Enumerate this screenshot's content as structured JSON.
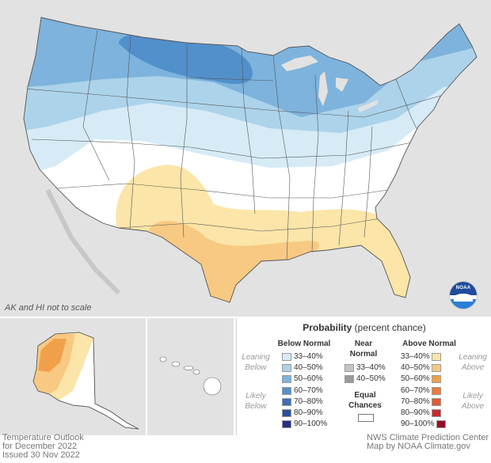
{
  "map": {
    "note": "AK and HI not to scale",
    "logo_text": "NOAA",
    "colors": {
      "below_33_40": "#d6ebf6",
      "below_40_50": "#acd3ea",
      "below_50_60": "#7db3dc",
      "below_60_70": "#5290cb",
      "above_33_40": "#fbe5a8",
      "above_40_50": "#f8c982",
      "above_50_60": "#f1a04a",
      "land": "#ffffff",
      "background": "#e2e2e2"
    }
  },
  "legend": {
    "title_bold": "Probability",
    "title_rest": "(percent chance)",
    "below_header": "Below Normal",
    "near_header_1": "Near",
    "near_header_2": "Normal",
    "above_header": "Above Normal",
    "leaning_below_1": "Leaning",
    "leaning_below_2": "Below",
    "likely_below_1": "Likely",
    "likely_below_2": "Below",
    "leaning_above_1": "Leaning",
    "leaning_above_2": "Above",
    "likely_above_1": "Likely",
    "likely_above_2": "Above",
    "equal_1": "Equal",
    "equal_2": "Chances",
    "below_rows": [
      {
        "label": "33–40%",
        "color": "#d6ebf6"
      },
      {
        "label": "40–50%",
        "color": "#acd3ea"
      },
      {
        "label": "50–60%",
        "color": "#7db3dc"
      },
      {
        "label": "60–70%",
        "color": "#5290cb"
      },
      {
        "label": "70–80%",
        "color": "#3c6db5"
      },
      {
        "label": "80–90%",
        "color": "#2b4ea0"
      },
      {
        "label": "90–100%",
        "color": "#252f8a"
      }
    ],
    "near_rows": [
      {
        "label": "33–40%",
        "color": "#c4c4c4"
      },
      {
        "label": "40–50%",
        "color": "#9a9a9a"
      }
    ],
    "above_rows": [
      {
        "label": "33–40%",
        "color": "#fbe5a8"
      },
      {
        "label": "40–50%",
        "color": "#f8c982"
      },
      {
        "label": "50–60%",
        "color": "#f1a04a"
      },
      {
        "label": "60–70%",
        "color": "#ec7a38"
      },
      {
        "label": "70–80%",
        "color": "#e05a33"
      },
      {
        "label": "80–90%",
        "color": "#c92a2a"
      },
      {
        "label": "90–100%",
        "color": "#9a0a1e"
      }
    ]
  },
  "footer": {
    "left_1": "Temperature Outlook",
    "left_2": "for December 2022",
    "left_3": "Issued 30 Nov 2022",
    "right_1": "NWS Climate Prediction Center",
    "right_2": "Map by NOAA Climate.gov"
  }
}
